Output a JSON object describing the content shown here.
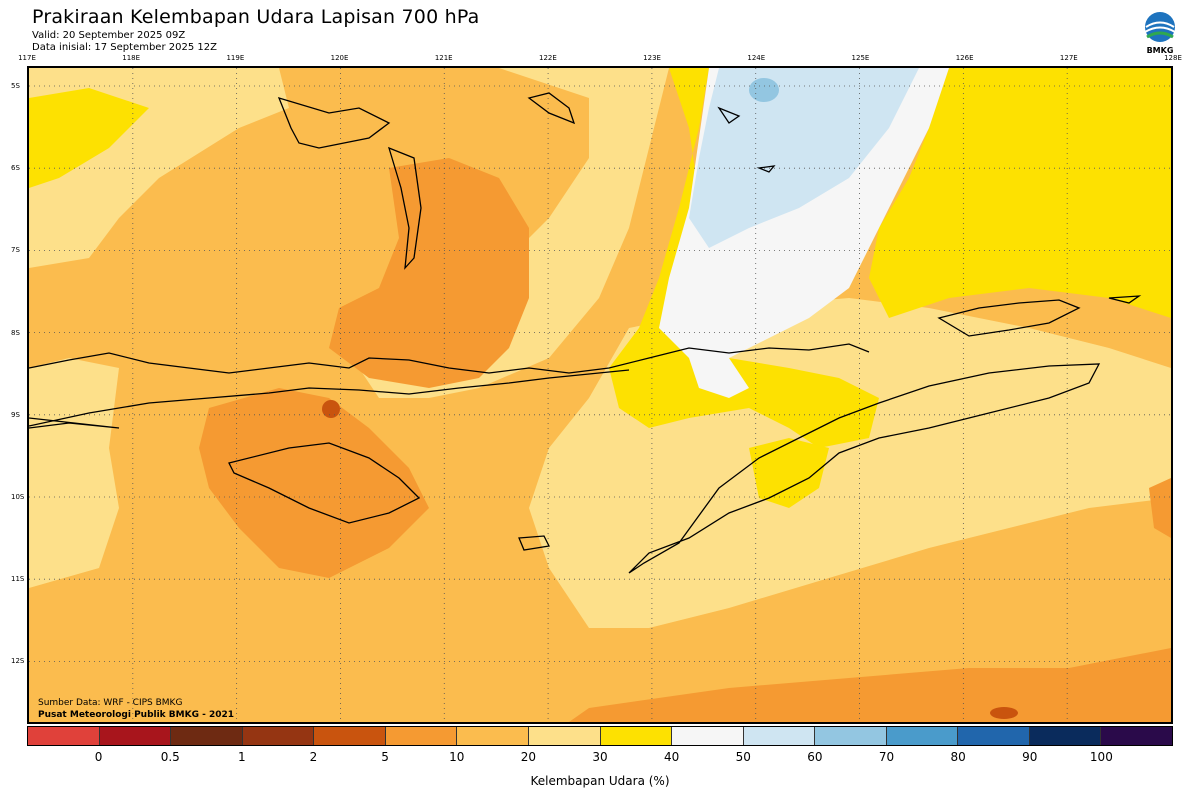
{
  "title": "Prakiraan Kelembapan Udara Lapisan 700 hPa",
  "valid": "Valid: 20 September 2025 09Z",
  "initial": "Data inisial: 17 September 2025 12Z",
  "logo_text": "BMKG",
  "source_line1": "Sumber Data: WRF - CIPS BMKG",
  "source_line2": "Pusat Meteorologi Publik BMKG - 2021",
  "colorbar_label": "Kelembapan Udara (%)",
  "lon_labels": [
    "117E",
    "118E",
    "119E",
    "120E",
    "121E",
    "122E",
    "123E",
    "124E",
    "125E",
    "126E",
    "127E",
    "128E"
  ],
  "lat_labels": [
    "5S",
    "6S",
    "7S",
    "8S",
    "9S",
    "10S",
    "11S",
    "12S"
  ],
  "colorbar": {
    "colors": [
      "#e0413a",
      "#a8151c",
      "#6e2a12",
      "#953512",
      "#c9540e",
      "#f59a32",
      "#fbbc4e",
      "#fde08a",
      "#fde101",
      "#f6f6f6",
      "#cfe5f2",
      "#93c6e1",
      "#4a9bcb",
      "#2166ac",
      "#0a2b5c",
      "#2a0a4a"
    ],
    "ticks": [
      "0",
      "0.5",
      "1",
      "2",
      "5",
      "10",
      "20",
      "30",
      "40",
      "50",
      "60",
      "70",
      "80",
      "90",
      "100"
    ]
  },
  "field_colors": {
    "pale": "#fde08a",
    "light_orange": "#fbbc4e",
    "orange": "#f59a32",
    "dark_orange": "#c9540e",
    "yellow": "#fde101",
    "white": "#f6f6f6",
    "light_blue": "#cfe5f2",
    "blue": "#93c6e1"
  }
}
